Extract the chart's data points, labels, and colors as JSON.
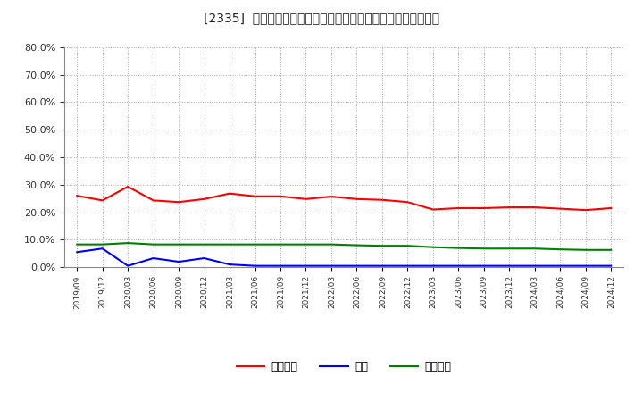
{
  "title": "[2335]  売上債権、在庫、買入債務の総資産に対する比率の推移",
  "x_labels": [
    "2019/09",
    "2019/12",
    "2020/03",
    "2020/06",
    "2020/09",
    "2020/12",
    "2021/03",
    "2021/06",
    "2021/09",
    "2021/12",
    "2022/03",
    "2022/06",
    "2022/09",
    "2022/12",
    "2023/03",
    "2023/06",
    "2023/09",
    "2023/12",
    "2024/03",
    "2024/06",
    "2024/09",
    "2024/12"
  ],
  "urikake": [
    0.26,
    0.243,
    0.293,
    0.243,
    0.237,
    0.248,
    0.268,
    0.258,
    0.258,
    0.248,
    0.257,
    0.248,
    0.245,
    0.237,
    0.21,
    0.215,
    0.215,
    0.218,
    0.218,
    0.213,
    0.208,
    0.215
  ],
  "zaiko": [
    0.055,
    0.068,
    0.005,
    0.033,
    0.02,
    0.033,
    0.01,
    0.005,
    0.005,
    0.005,
    0.005,
    0.005,
    0.005,
    0.005,
    0.005,
    0.005,
    0.005,
    0.005,
    0.005,
    0.005,
    0.005,
    0.005
  ],
  "kaiire": [
    0.083,
    0.083,
    0.088,
    0.083,
    0.083,
    0.083,
    0.083,
    0.083,
    0.083,
    0.083,
    0.083,
    0.08,
    0.078,
    0.078,
    0.073,
    0.07,
    0.068,
    0.068,
    0.068,
    0.065,
    0.063,
    0.063
  ],
  "urikake_color": "#ff0000",
  "zaiko_color": "#0000ff",
  "kaiire_color": "#008000",
  "ylim": [
    0.0,
    0.8
  ],
  "yticks": [
    0.0,
    0.1,
    0.2,
    0.3,
    0.4,
    0.5,
    0.6,
    0.7,
    0.8
  ],
  "background_color": "#ffffff",
  "plot_bg_color": "#ffffff",
  "grid_color": "#aaaaaa",
  "legend_labels": [
    "売上債権",
    "在庫",
    "買入債務"
  ]
}
